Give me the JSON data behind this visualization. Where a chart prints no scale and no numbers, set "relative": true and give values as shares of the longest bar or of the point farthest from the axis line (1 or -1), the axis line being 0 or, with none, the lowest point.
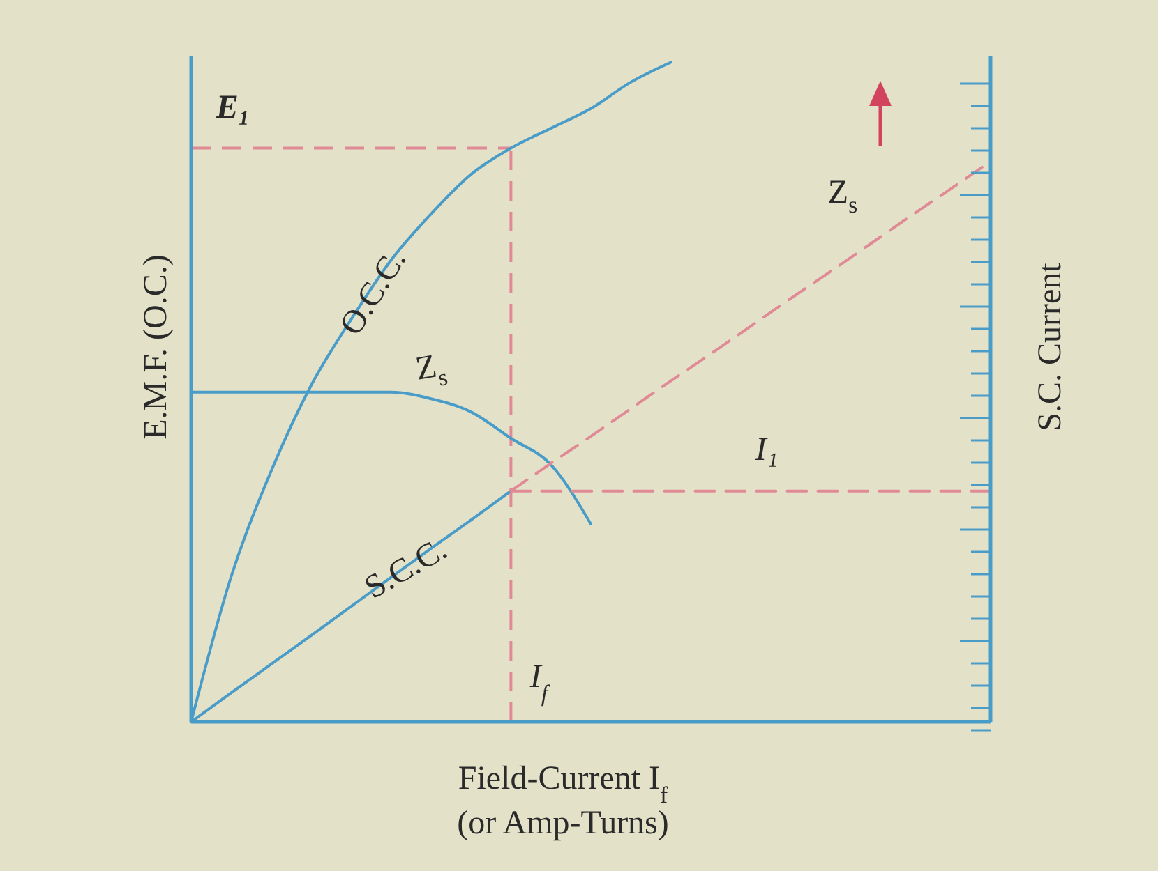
{
  "chart_data": {
    "type": "line",
    "relative": true,
    "categories": [
      null,
      null,
      null,
      null,
      null,
      null,
      null,
      null,
      null,
      null,
      null,
      null,
      null,
      null,
      null,
      null,
      null,
      null,
      null,
      null,
      null
    ],
    "xlabel": "Field-Current I$_{f}$\n(or Amp-Turns)",
    "ylabel": "E.M.F. (O.C.)",
    "y2label": "S.C. Current",
    "series": [
      {
        "name": "O.C.C.",
        "color": "#4a9cc8",
        "values": [
          0,
          0.22,
          0.38,
          0.51,
          0.61,
          0.7,
          0.77,
          0.83,
          0.87,
          0.9,
          0.93,
          0.97,
          1,
          null,
          null,
          null,
          null,
          null,
          null,
          null,
          null
        ]
      },
      {
        "name": "Z$_{s}$",
        "color": "#4a9cc8",
        "values": [
          0.5,
          0.5,
          0.5,
          0.5,
          0.5,
          0.5,
          0.49,
          0.47,
          0.43,
          0.39,
          0.3,
          null,
          null,
          null,
          null,
          null,
          null,
          null,
          null,
          null,
          null
        ]
      },
      {
        "name": "S.C.C.",
        "color": "#4a9cc8",
        "values": [
          0,
          0.044,
          0.0875,
          0.131,
          0.175,
          0.219,
          0.263,
          0.306,
          0.35,
          null,
          null,
          null,
          null,
          null,
          null,
          null,
          null,
          null,
          null,
          null,
          null
        ]
      },
      {
        "name": "Z$_{s}$",
        "color": "#e08a95",
        "line_style": "dashed",
        "values": [
          null,
          null,
          null,
          null,
          null,
          null,
          null,
          null,
          0.35,
          0.392,
          0.433,
          0.475,
          0.517,
          0.558,
          0.6,
          0.642,
          0.683,
          0.725,
          0.767,
          0.808,
          0.85
        ]
      },
      {
        "name": "I₁",
        "color": "#e08a95",
        "line_style": "dashed",
        "values": [
          null,
          null,
          null,
          null,
          null,
          null,
          null,
          null,
          0.35,
          0.35,
          0.35,
          0.35,
          0.35,
          0.35,
          0.35,
          0.35,
          0.35,
          0.35,
          0.35,
          0.35,
          0.35
        ]
      }
    ],
    "ref_lines": [
      {
        "axis": "y",
        "value": 0.87,
        "label": "E₁",
        "color": "#e08a95",
        "line_style": "dashed"
      }
    ],
    "annotations": [
      "I$_{f}$"
    ]
  }
}
